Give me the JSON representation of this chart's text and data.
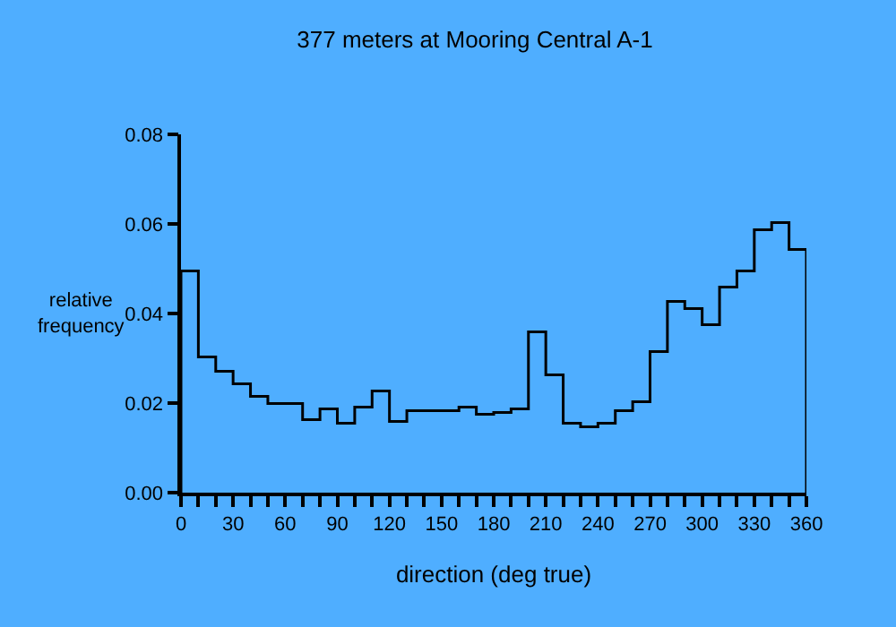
{
  "chart_data": {
    "type": "histogram",
    "title": "377 meters at Mooring Central A-1",
    "xlabel": "direction (deg true)",
    "ylabel": "relative\nfrequency",
    "bins": [
      0,
      10,
      20,
      30,
      40,
      50,
      60,
      70,
      80,
      90,
      100,
      110,
      120,
      130,
      140,
      150,
      160,
      170,
      180,
      190,
      200,
      210,
      220,
      230,
      240,
      250,
      260,
      270,
      280,
      290,
      300,
      310,
      320,
      330,
      340,
      350,
      360
    ],
    "values": [
      0.0495,
      0.0303,
      0.0271,
      0.0243,
      0.0215,
      0.0199,
      0.0199,
      0.0163,
      0.0187,
      0.0155,
      0.0191,
      0.0227,
      0.0159,
      0.0183,
      0.0183,
      0.0183,
      0.0191,
      0.0175,
      0.0179,
      0.0187,
      0.0359,
      0.0263,
      0.0155,
      0.0147,
      0.0155,
      0.0183,
      0.0203,
      0.0315,
      0.0427,
      0.0411,
      0.0375,
      0.0459,
      0.0495,
      0.0587,
      0.0603,
      0.0543
    ],
    "color": "#000000",
    "xlim": [
      0,
      360
    ],
    "ylim": [
      0,
      0.08
    ],
    "xticks": [
      0,
      {
        "value": 10,
        "label": null
      },
      {
        "value": 20,
        "label": null
      },
      30,
      {
        "value": 40,
        "label": null
      },
      {
        "value": 50,
        "label": null
      },
      60,
      {
        "value": 70,
        "label": null
      },
      {
        "value": 80,
        "label": null
      },
      90,
      {
        "value": 100,
        "label": null
      },
      {
        "value": 110,
        "label": null
      },
      120,
      {
        "value": 130,
        "label": null
      },
      {
        "value": 140,
        "label": null
      },
      150,
      {
        "value": 160,
        "label": null
      },
      {
        "value": 170,
        "label": null
      },
      180,
      {
        "value": 190,
        "label": null
      },
      {
        "value": 200,
        "label": null
      },
      210,
      {
        "value": 220,
        "label": null
      },
      {
        "value": 230,
        "label": null
      },
      240,
      {
        "value": 250,
        "label": null
      },
      {
        "value": 260,
        "label": null
      },
      270,
      {
        "value": 280,
        "label": null
      },
      {
        "value": 290,
        "label": null
      },
      300,
      {
        "value": 310,
        "label": null
      },
      {
        "value": 320,
        "label": null
      },
      330,
      {
        "value": 340,
        "label": null
      },
      {
        "value": 350,
        "label": null
      },
      360
    ],
    "yticks": [
      {
        "value": 0,
        "label": "0.00"
      },
      {
        "value": 0.02,
        "label": "0.02"
      },
      {
        "value": 0.04,
        "label": "0.04"
      },
      {
        "value": 0.06,
        "label": "0.06"
      },
      {
        "value": 0.08,
        "label": "0.08"
      }
    ],
    "grid": false
  }
}
